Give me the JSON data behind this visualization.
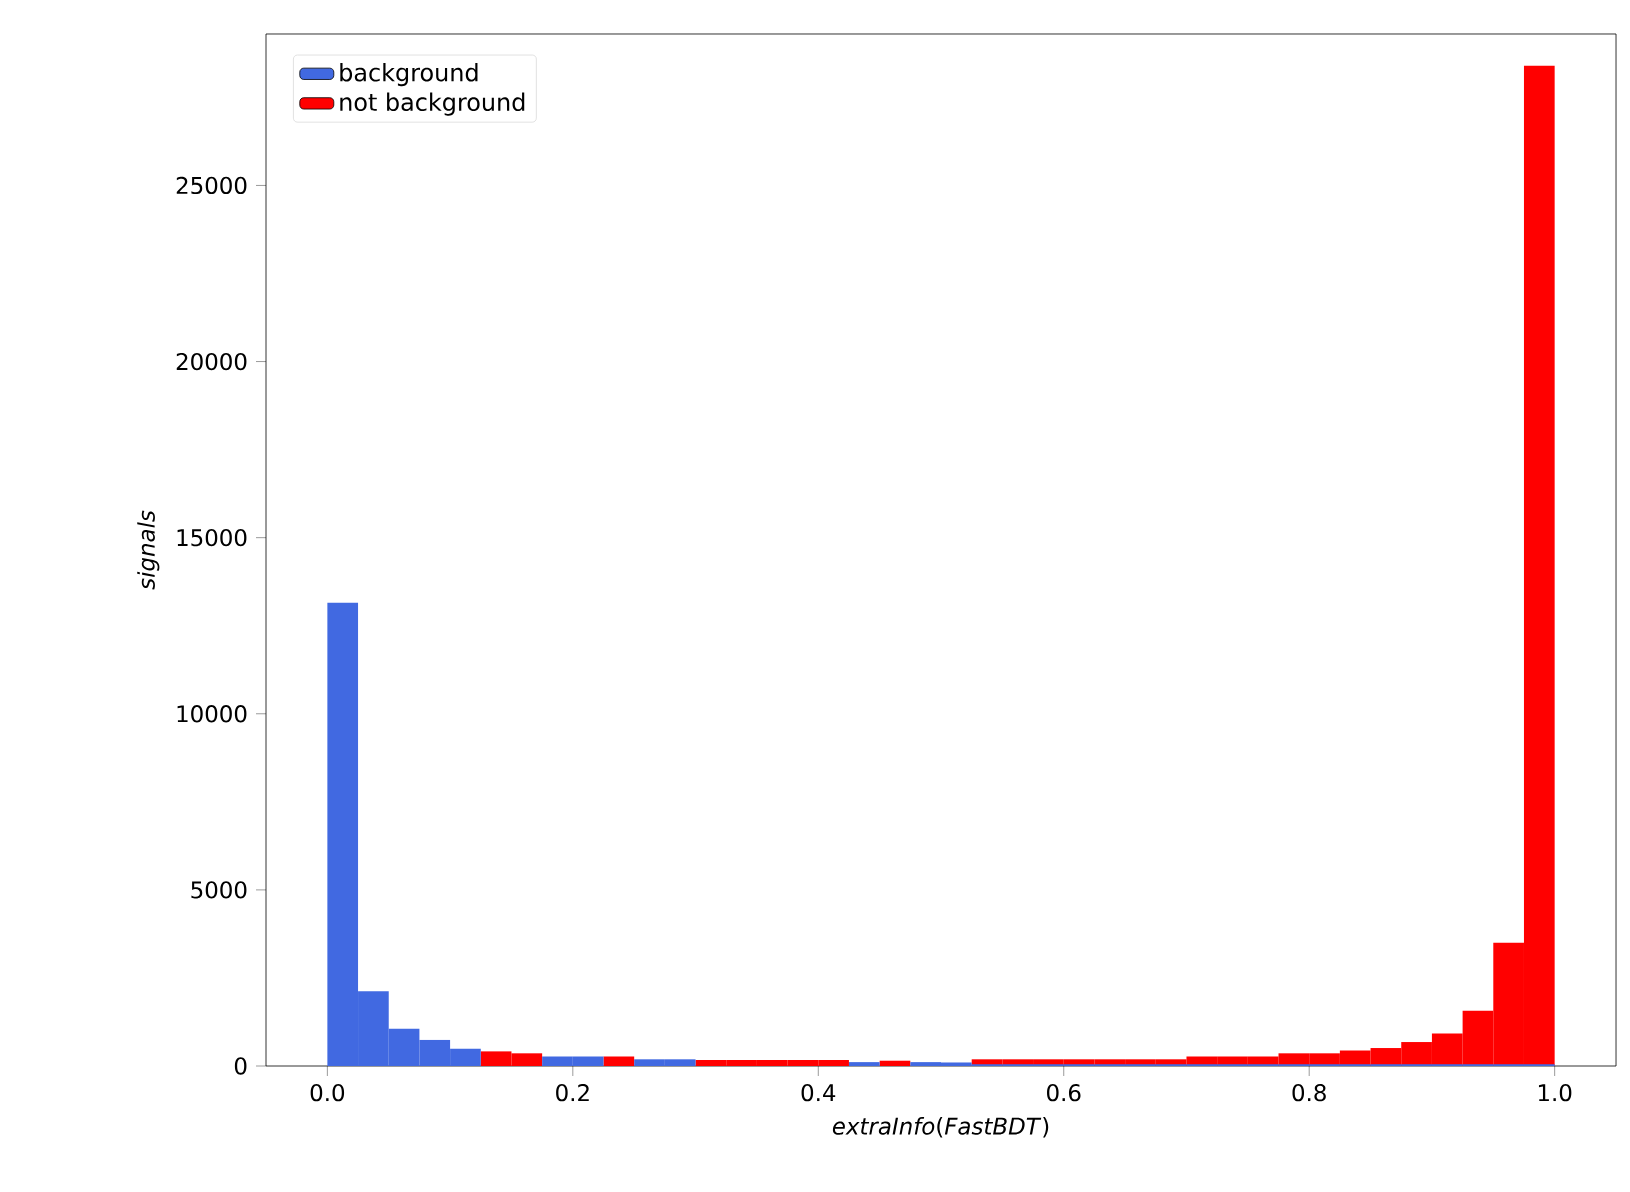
{
  "chart_data": {
    "type": "histogram",
    "xlabel": "*extraInfo*(*FastBDT*)",
    "ylabel": "signals",
    "bins": [
      0,
      0.025,
      0.05,
      0.075,
      0.1,
      0.125,
      0.15,
      0.175,
      0.2,
      0.225,
      0.25,
      0.275,
      0.3,
      0.325,
      0.35,
      0.375,
      0.4,
      0.425,
      0.45,
      0.475,
      0.5,
      0.525,
      0.55,
      0.575,
      0.6,
      0.625,
      0.65,
      0.675,
      0.7,
      0.725,
      0.75,
      0.775,
      0.8,
      0.825,
      0.85,
      0.875,
      0.9,
      0.925,
      0.95,
      0.975,
      1.0
    ],
    "series": [
      {
        "name": "background",
        "color": "#4169e1",
        "values": [
          13150,
          2120,
          1060,
          740,
          490,
          null,
          null,
          270,
          270,
          null,
          190,
          190,
          null,
          null,
          null,
          null,
          null,
          110,
          null,
          110,
          100,
          50,
          50,
          50,
          50,
          50,
          50,
          50,
          50,
          50,
          50,
          50,
          50,
          50,
          50,
          50,
          50,
          50,
          50,
          50
        ]
      },
      {
        "name": "not background",
        "color": "#ff0000",
        "values": [
          null,
          null,
          null,
          null,
          null,
          415,
          360,
          null,
          null,
          270,
          null,
          null,
          170,
          170,
          170,
          170,
          170,
          null,
          150,
          null,
          null,
          190,
          190,
          190,
          190,
          190,
          190,
          190,
          270,
          270,
          270,
          360,
          360,
          440,
          510,
          680,
          925,
          1570,
          3500,
          28400
        ]
      }
    ],
    "xlim": [
      -0.05,
      1.05
    ],
    "ylim": [
      0,
      29300
    ],
    "xticks": [
      {
        "value": 0,
        "label": "0.0"
      },
      0.2,
      0.4,
      0.6,
      0.8,
      {
        "value": 1,
        "label": "1.0"
      }
    ],
    "yticks": [
      0,
      5000,
      10000,
      15000,
      20000,
      25000
    ],
    "legend": "top left"
  }
}
